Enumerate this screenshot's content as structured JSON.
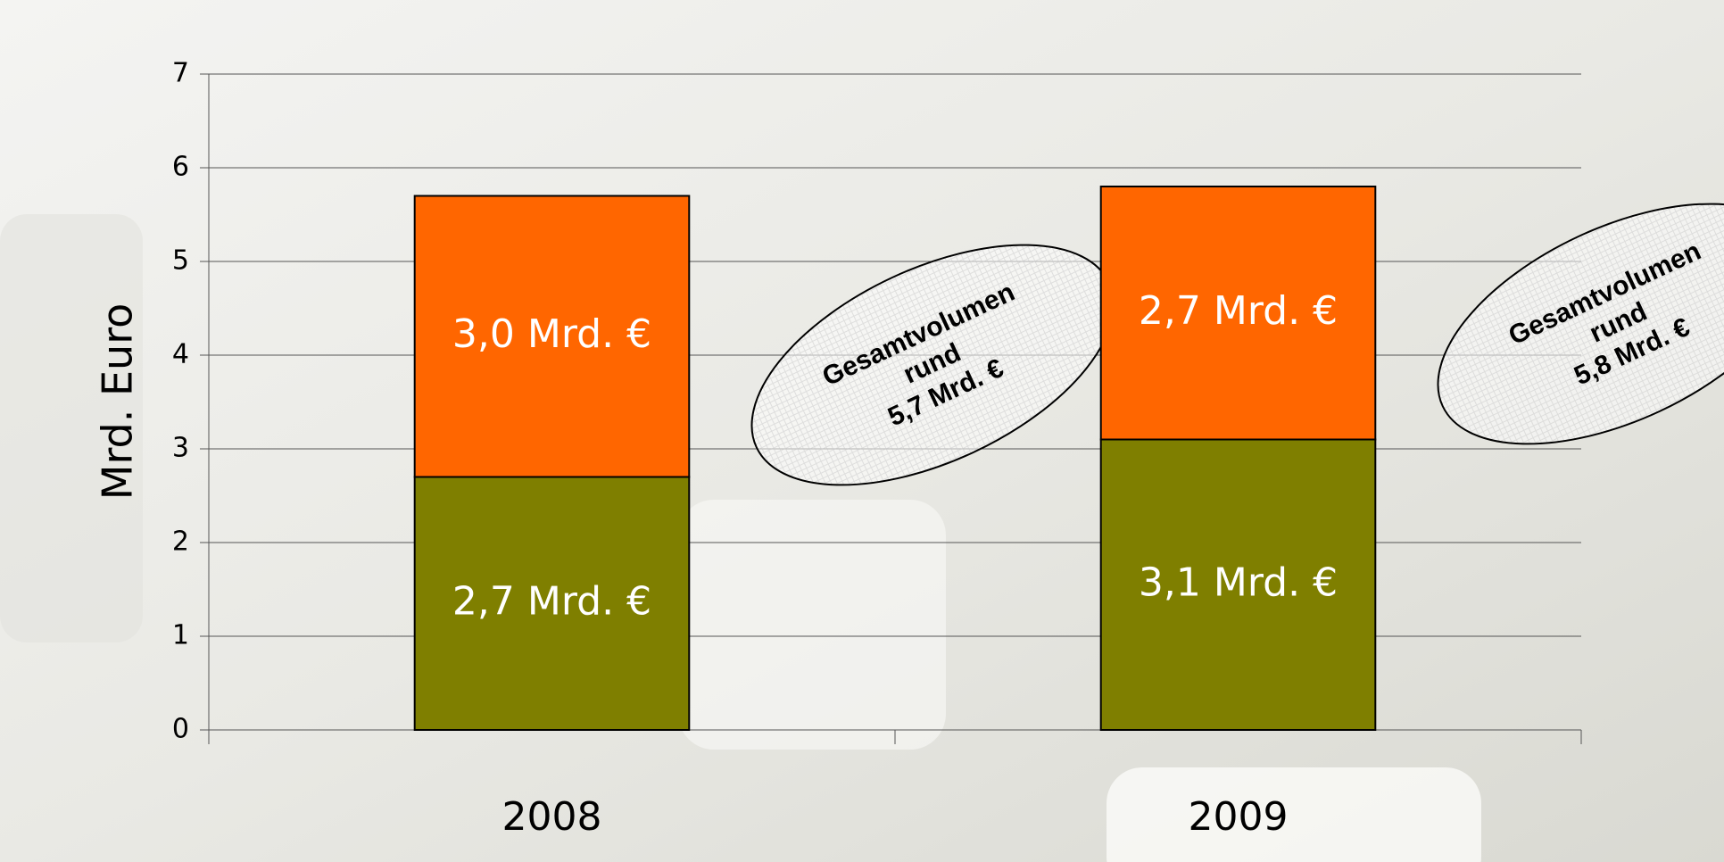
{
  "chart_data": {
    "type": "stacked_bar",
    "y_axis_label": "Mrd. Euro",
    "categories": [
      "2008",
      "2009"
    ],
    "series": [
      {
        "color": "#7f7f00",
        "values": [
          2.7,
          3.1
        ],
        "value_labels": [
          "2,7 Mrd. €",
          "3,1 Mrd. €"
        ]
      },
      {
        "color": "#ff6600",
        "values": [
          3.0,
          2.7
        ],
        "value_labels": [
          "3,0 Mrd. €",
          "2,7 Mrd. €"
        ]
      }
    ],
    "ylim": [
      0,
      7
    ],
    "yticks": [
      0,
      1,
      2,
      3,
      4,
      5,
      6,
      7
    ],
    "grid": true,
    "annotations": [
      {
        "lines": [
          "Gesamtvolumen",
          "rund",
          "5,7 Mrd. €"
        ]
      },
      {
        "lines": [
          "Gesamtvolumen",
          "rund",
          "5,8 Mrd. €"
        ]
      }
    ]
  }
}
